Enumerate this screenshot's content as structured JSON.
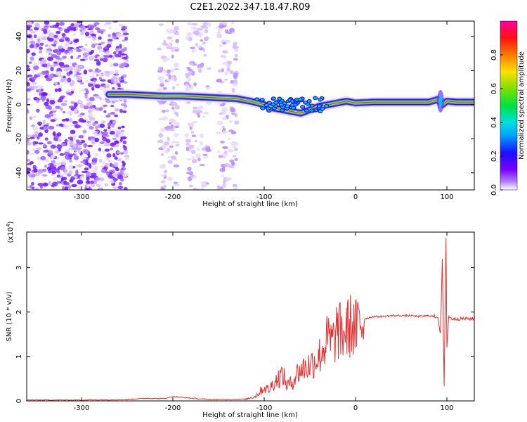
{
  "title": "C2E1.2022.347.18.47.R09",
  "chart_data": [
    {
      "type": "heatmap",
      "xlabel": "Height of straight line (km)",
      "ylabel": "Frequency (Hz)",
      "xlim": [
        -360,
        130
      ],
      "ylim": [
        -50,
        49
      ],
      "xticks": [
        -300,
        -200,
        -100,
        0,
        100
      ],
      "yticks": [
        -40,
        -20,
        0,
        20,
        40
      ],
      "colorbar": {
        "label": "Normalized spectral amplitude",
        "range": [
          0,
          1
        ],
        "ticks": [
          0.0,
          0.2,
          0.4,
          0.6,
          0.8
        ],
        "tick_labels": [
          "0.0",
          "0.2",
          "0.4",
          "0.6",
          "0.8"
        ]
      },
      "ridge": {
        "x": [
          -270,
          -250,
          -230,
          -210,
          -190,
          -170,
          -150,
          -130,
          -115,
          -100,
          -90,
          -80,
          -70,
          -60,
          -50,
          -40,
          -30,
          -20,
          -10,
          0,
          20,
          40,
          60,
          80,
          90,
          95,
          100,
          110,
          130
        ],
        "y": [
          6,
          6,
          5.5,
          5,
          5,
          4.5,
          4,
          3.5,
          2,
          0,
          -2,
          -3,
          -4,
          -5,
          -3,
          -1,
          0,
          1,
          2,
          1,
          1.5,
          1.5,
          1.5,
          1.5,
          3,
          0,
          2,
          1.5,
          1.5
        ]
      },
      "noise_regions_x": [
        [
          -360,
          -250
        ],
        [
          -215,
          -195
        ],
        [
          -185,
          -160
        ],
        [
          -150,
          -130
        ]
      ]
    },
    {
      "type": "line",
      "xlabel": "Height of straight line (km)",
      "ylabel": "SNR (10 * v/v)",
      "y_multiplier": "(x10",
      "y_exponent": "4",
      "y_multiplier_close": ")",
      "xlim": [
        -360,
        130
      ],
      "ylim": [
        0,
        3.8
      ],
      "xticks": [
        -300,
        -200,
        -100,
        0,
        100
      ],
      "yticks": [
        0,
        1,
        2,
        3
      ],
      "color": "#e53030",
      "series": [
        {
          "x": [
            -360,
            -300,
            -250,
            -230,
            -210,
            -200,
            -180,
            -160,
            -140,
            -120,
            -110,
            -105,
            -100,
            -95,
            -90,
            -85,
            -80,
            -75,
            -70,
            -65,
            -60,
            -55,
            -50,
            -45,
            -40,
            -35,
            -30,
            -25,
            -20,
            -15,
            -10,
            -5,
            0,
            5,
            10,
            20,
            30,
            40,
            50,
            60,
            70,
            80,
            85,
            90,
            93,
            95,
            97,
            99,
            100,
            102,
            105,
            110,
            120,
            130
          ],
          "values": [
            0.02,
            0.02,
            0.03,
            0.06,
            0.05,
            0.1,
            0.06,
            0.03,
            0.03,
            0.04,
            0.1,
            0.2,
            0.3,
            0.25,
            0.4,
            0.5,
            0.6,
            0.35,
            0.4,
            0.6,
            0.7,
            0.75,
            0.8,
            0.9,
            1.0,
            1.2,
            1.4,
            1.3,
            1.6,
            1.5,
            1.6,
            1.7,
            1.6,
            1.75,
            1.85,
            1.9,
            1.9,
            1.92,
            1.92,
            1.92,
            1.9,
            1.92,
            1.9,
            1.9,
            1.5,
            3.2,
            0.3,
            3.7,
            1.2,
            1.9,
            1.85,
            1.85,
            1.85,
            1.85
          ]
        }
      ]
    }
  ]
}
